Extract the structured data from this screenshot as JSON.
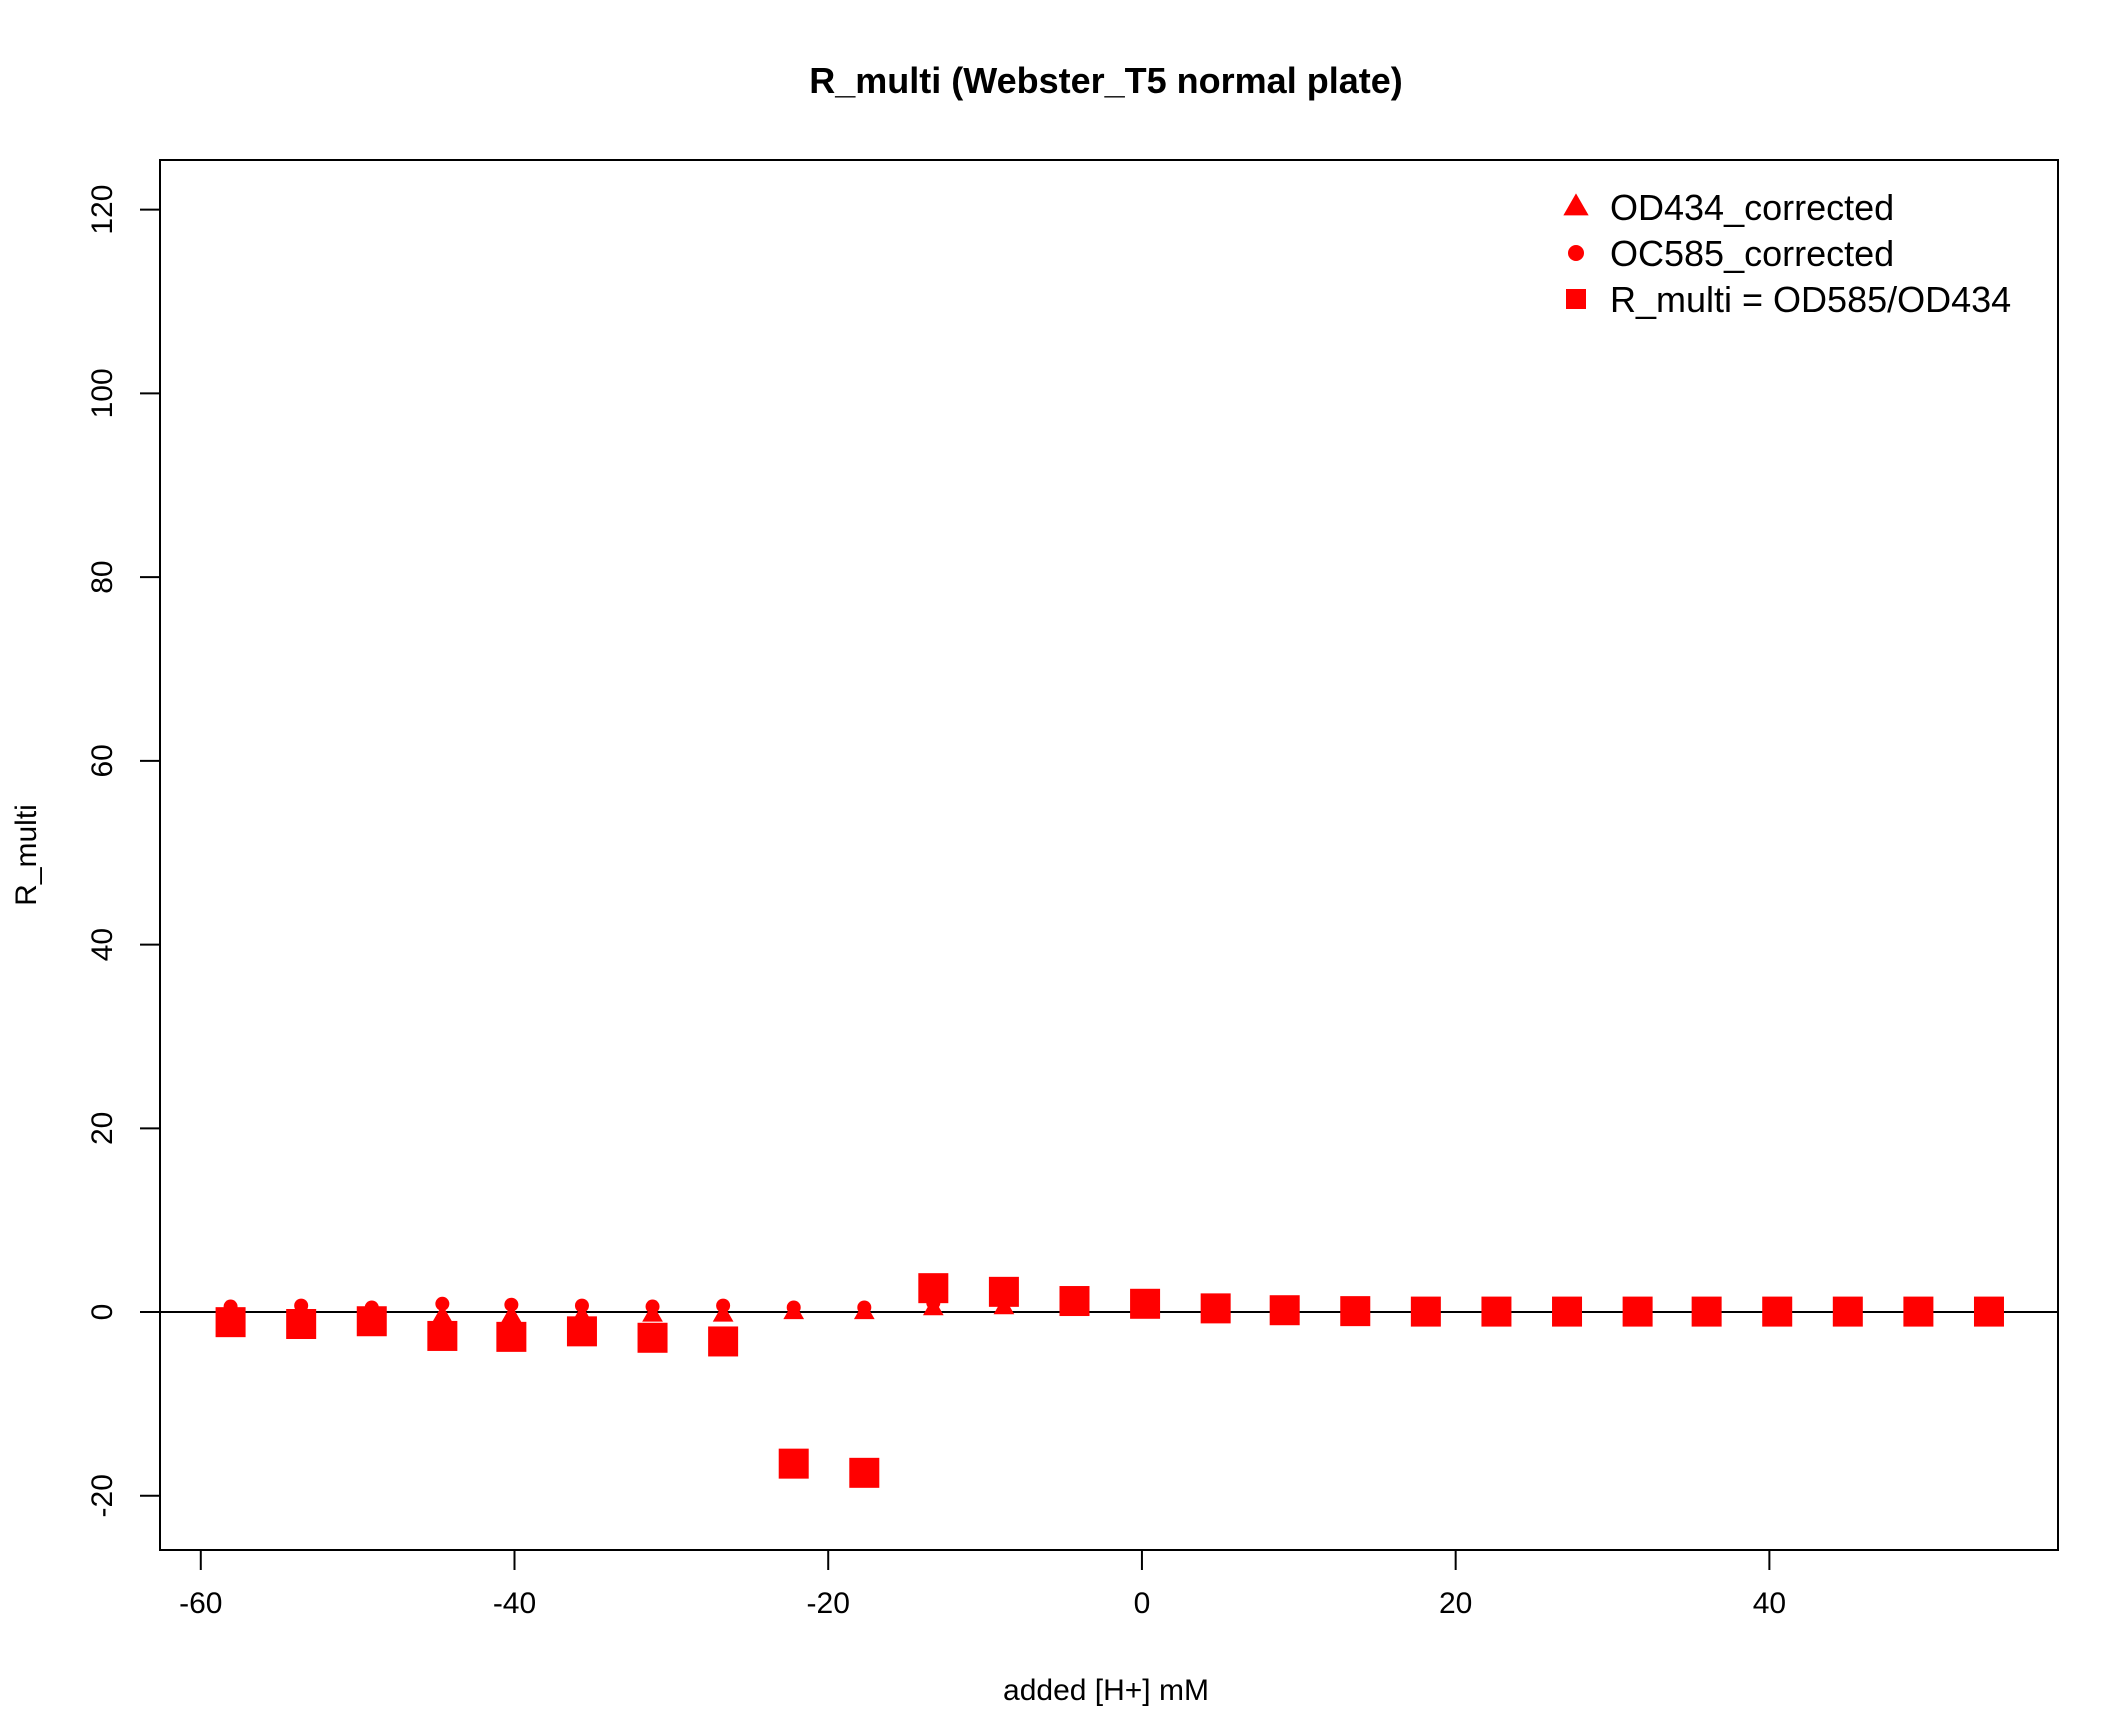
{
  "chart_data": {
    "type": "scatter",
    "title": "R_multi (Webster_T5 normal plate)",
    "xlabel": "added [H+] mM",
    "ylabel": "R_multi",
    "xlim": [
      -62.6,
      58.4
    ],
    "ylim": [
      -25.9,
      125.4
    ],
    "xticks": [
      -60,
      -40,
      -20,
      0,
      20,
      40
    ],
    "yticks": [
      -20,
      0,
      20,
      40,
      60,
      80,
      100,
      120
    ],
    "reference_line_y": 0,
    "legend_position": "top-right",
    "color": "#ff0000",
    "series": [
      {
        "name": "OD434_corrected",
        "marker": "triangle",
        "x": [
          -58.1,
          -53.6,
          -49.1,
          -44.6,
          -40.2,
          -35.7,
          -31.2,
          -26.7,
          -22.2,
          -17.7,
          -13.3,
          -8.8,
          -4.3,
          0.2,
          4.7,
          9.1,
          13.6,
          18.1,
          22.6,
          27.1,
          31.6,
          36.0,
          40.5,
          45.0,
          49.5,
          54.0
        ],
        "y": [
          -0.6,
          -0.6,
          -0.5,
          -0.4,
          -0.4,
          -0.4,
          -0.3,
          -0.3,
          -0.03,
          -0.03,
          0.4,
          0.5,
          0.6,
          0.7,
          0.5,
          0.3,
          0.2,
          0.1,
          0.1,
          0.05,
          0.05,
          0.05,
          0.05,
          0.05,
          0.05,
          0.05
        ]
      },
      {
        "name": "OC585_corrected",
        "marker": "circle",
        "x": [
          -58.1,
          -53.6,
          -49.1,
          -44.6,
          -40.2,
          -35.7,
          -31.2,
          -26.7,
          -22.2,
          -17.7,
          -13.3,
          -8.8,
          -4.3,
          0.2,
          4.7,
          9.1,
          13.6,
          18.1,
          22.6,
          27.1,
          31.6,
          36.0,
          40.5,
          45.0,
          49.5,
          54.0
        ],
        "y": [
          0.6,
          0.7,
          0.5,
          0.9,
          0.8,
          0.7,
          0.6,
          0.7,
          0.5,
          0.5,
          1.0,
          1.1,
          0.8,
          0.7,
          0.2,
          0.1,
          0.05,
          0.05,
          0.05,
          0.05,
          0.05,
          0.05,
          0.05,
          0.05,
          0.05,
          0.05
        ]
      },
      {
        "name": "R_multi = OD585/OD434",
        "marker": "square",
        "x": [
          -58.1,
          -53.6,
          -49.1,
          -44.6,
          -40.2,
          -35.7,
          -31.2,
          -26.7,
          -22.2,
          -17.7,
          -13.3,
          -8.8,
          -4.3,
          0.2,
          4.7,
          9.1,
          13.6,
          18.1,
          22.6,
          27.1,
          31.6,
          36.0,
          40.5,
          45.0,
          49.5,
          54.0
        ],
        "y": [
          -1.1,
          -1.3,
          -1.0,
          -2.6,
          -2.7,
          -2.1,
          -2.8,
          -3.2,
          -16.5,
          -17.5,
          2.6,
          2.2,
          1.2,
          0.9,
          0.4,
          0.2,
          0.1,
          0.05,
          0.05,
          0.05,
          0.05,
          0.05,
          0.05,
          0.05,
          0.05,
          0.05
        ]
      }
    ]
  }
}
